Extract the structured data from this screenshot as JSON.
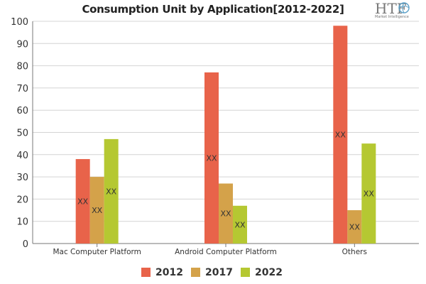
{
  "chart_data": {
    "type": "bar",
    "title": "Consumption Unit by  Application[2012-2022]",
    "categories": [
      "Mac Computer Platform",
      "Android Computer Platform",
      "Others"
    ],
    "series": [
      {
        "name": "2012",
        "color": "#e8634a",
        "values": [
          38,
          77,
          98
        ]
      },
      {
        "name": "2017",
        "color": "#d4a24a",
        "values": [
          30,
          27,
          15
        ]
      },
      {
        "name": "2022",
        "color": "#b5c832",
        "values": [
          47,
          17,
          45
        ]
      }
    ],
    "data_label": "XX",
    "ylim": [
      0,
      100
    ],
    "yticks": [
      0,
      10,
      20,
      30,
      40,
      50,
      60,
      70,
      80,
      90,
      100
    ],
    "grid": true,
    "legend_position": "bottom"
  },
  "logo": {
    "main": "HTF",
    "sub": "Market Intelligence"
  }
}
